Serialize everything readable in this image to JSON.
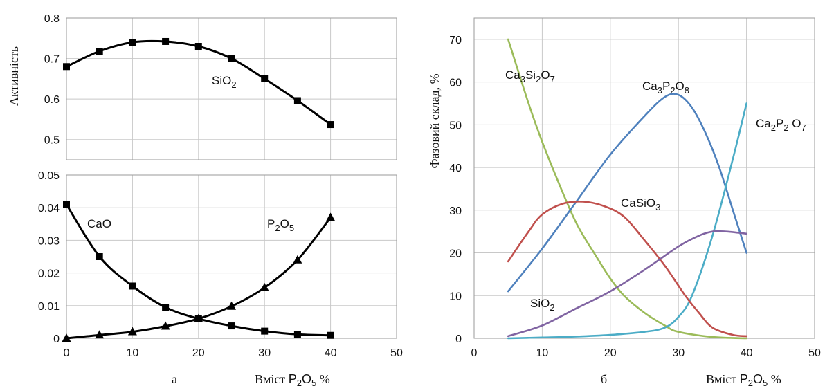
{
  "chart_data": [
    {
      "panel": "a-top",
      "type": "line",
      "ylabel": "Активність",
      "xlim": [
        0,
        50
      ],
      "ylim": [
        0.45,
        0.8
      ],
      "yticks": [
        0.5,
        0.6,
        0.7,
        0.8
      ],
      "ytick_labels": [
        "0.5",
        "0.6",
        "0.7",
        "0.8"
      ],
      "grid": true,
      "series": [
        {
          "name": "SiO2",
          "label_text": "SiO",
          "label_sub": "2",
          "marker": "square",
          "color": "#000000",
          "x": [
            0,
            5,
            10,
            15,
            20,
            25,
            30,
            35,
            40
          ],
          "y": [
            0.68,
            0.718,
            0.74,
            0.742,
            0.73,
            0.7,
            0.65,
            0.596,
            0.537
          ]
        }
      ]
    },
    {
      "panel": "a-bottom",
      "type": "line",
      "xlim": [
        0,
        50
      ],
      "ylim": [
        0,
        0.05
      ],
      "xticks": [
        0,
        10,
        20,
        30,
        40,
        50
      ],
      "xtick_labels": [
        "0",
        "10",
        "20",
        "30",
        "40",
        "50"
      ],
      "yticks": [
        0,
        0.01,
        0.02,
        0.03,
        0.04,
        0.05
      ],
      "ytick_labels": [
        "0",
        "0.01",
        "0.02",
        "0.03",
        "0.04",
        "0.05"
      ],
      "grid": true,
      "series": [
        {
          "name": "CaO",
          "label_text": "CaO",
          "label_sub": "",
          "marker": "square",
          "color": "#000000",
          "x": [
            0,
            5,
            10,
            15,
            20,
            25,
            30,
            35,
            40
          ],
          "y": [
            0.041,
            0.025,
            0.016,
            0.0095,
            0.006,
            0.0038,
            0.0022,
            0.0012,
            0.0009
          ]
        },
        {
          "name": "P2O5",
          "label_text": "P",
          "label_sub": "2",
          "label_text2": "O",
          "label_sub2": "5",
          "marker": "triangle",
          "color": "#000000",
          "x": [
            0,
            5,
            10,
            15,
            20,
            25,
            30,
            35,
            40
          ],
          "y": [
            0.0,
            0.001,
            0.002,
            0.0037,
            0.006,
            0.0098,
            0.0155,
            0.024,
            0.037
          ]
        }
      ]
    },
    {
      "panel": "b",
      "type": "line",
      "ylabel": "Фазовий склад, %",
      "xlim": [
        0,
        50
      ],
      "ylim": [
        0,
        75
      ],
      "xticks": [
        0,
        10,
        20,
        30,
        40,
        50
      ],
      "xtick_labels": [
        "0",
        "10",
        "20",
        "30",
        "40",
        "50"
      ],
      "yticks": [
        0,
        10,
        20,
        30,
        40,
        50,
        60,
        70
      ],
      "ytick_labels": [
        "0",
        "10",
        "20",
        "30",
        "40",
        "50",
        "60",
        "70"
      ],
      "grid": true,
      "series": [
        {
          "name": "Ca3Si2O7",
          "color": "#9bbb59",
          "x": [
            5,
            8,
            10,
            12,
            15,
            18,
            20,
            22,
            25,
            28,
            30,
            35,
            40
          ],
          "y": [
            70,
            55,
            46,
            38,
            27,
            19,
            14,
            10,
            6,
            3,
            1.5,
            0.3,
            0
          ]
        },
        {
          "name": "Ca3P2O8",
          "color": "#4f81bd",
          "x": [
            5,
            10,
            15,
            20,
            25,
            28,
            30,
            32,
            34,
            36,
            38,
            40
          ],
          "y": [
            11,
            21,
            32,
            43,
            52,
            56.5,
            57,
            54,
            48,
            40,
            30,
            20
          ]
        },
        {
          "name": "Ca2P2O7",
          "color": "#4bacc6",
          "x": [
            5,
            10,
            15,
            20,
            25,
            28,
            30,
            32,
            35,
            38,
            40
          ],
          "y": [
            0,
            0.2,
            0.4,
            0.8,
            1.5,
            2.5,
            5,
            10,
            24,
            42,
            55
          ]
        },
        {
          "name": "CaSiO3",
          "color": "#c0504d",
          "x": [
            5,
            8,
            10,
            13,
            16,
            19,
            22,
            25,
            28,
            31,
            33,
            35,
            38,
            40
          ],
          "y": [
            18,
            25,
            29,
            31.5,
            32,
            31,
            28.5,
            23,
            17,
            10,
            6,
            2.5,
            0.8,
            0.5
          ]
        },
        {
          "name": "SiO2",
          "color": "#8064a2",
          "x": [
            5,
            10,
            15,
            20,
            25,
            30,
            33,
            35,
            37,
            40
          ],
          "y": [
            0.5,
            3,
            7,
            11,
            16,
            21.5,
            24,
            25,
            25,
            24.5
          ]
        }
      ]
    }
  ],
  "annotations": {
    "a_top_label": {
      "text": "SiO",
      "sub": "2"
    },
    "a_cao_label": "CaO",
    "a_p2o5_label": {
      "t1": "P",
      "s1": "2",
      "t2": "O",
      "s2": "5"
    },
    "b_ca3si2o7": {
      "t1": "Ca",
      "s1": "3",
      "t2": "Si",
      "s2": "2",
      "t3": "O",
      "s3": "7"
    },
    "b_ca3p2o8": {
      "t1": "Ca",
      "s1": "3",
      "t2": "P",
      "s2": "2",
      "t3": "O",
      "s3": "8"
    },
    "b_ca2p2o7": {
      "t1": "Ca",
      "s1": "2",
      "t2": "P",
      "s2": "2",
      "t3": " O",
      "s3": "7"
    },
    "b_casio3": {
      "t1": "CaSiO",
      "s1": "3"
    },
    "b_sio2": {
      "t1": "SiO",
      "s1": "2"
    }
  },
  "captions": {
    "panel_a": "а",
    "panel_b": "б",
    "x_title_a": {
      "prefix": "Вміст ",
      "t1": "P",
      "s1": "2",
      "t2": "O",
      "s2": "5",
      "suffix": " %"
    },
    "x_title_b": {
      "prefix": "Вміст ",
      "t1": "P",
      "s1": "2",
      "t2": "O",
      "s2": "5",
      "suffix": " %"
    }
  }
}
